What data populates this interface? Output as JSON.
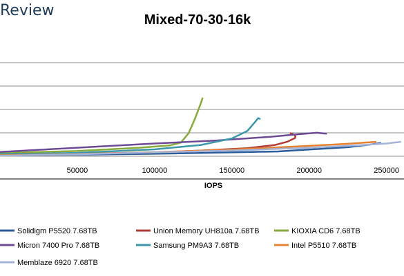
{
  "brand_text": "Review",
  "chart_data": {
    "type": "line",
    "title": "Mixed-70-30-16k",
    "xlabel": "IOPS",
    "ylabel": "",
    "xlim": [
      0,
      260000
    ],
    "xticks": [
      50000,
      100000,
      150000,
      200000,
      250000
    ],
    "x_tick_labels": [
      "50000",
      "100000",
      "150000",
      "200000",
      "250000"
    ],
    "y_gridlines": 5,
    "grid": true,
    "legend_position": "bottom",
    "series": [
      {
        "name": "Solidigm P5520 7.68TB",
        "color": "#2a5b9b",
        "points": [
          [
            0,
            0.05
          ],
          [
            50000,
            0.08
          ],
          [
            100000,
            0.12
          ],
          [
            150000,
            0.18
          ],
          [
            180000,
            0.22
          ],
          [
            200000,
            0.3
          ],
          [
            225000,
            0.4
          ],
          [
            240000,
            0.52
          ],
          [
            246000,
            0.58
          ]
        ]
      },
      {
        "name": "Union Memory UH810a 7.68TB",
        "color": "#b23b36",
        "points": [
          [
            0,
            0.08
          ],
          [
            50000,
            0.12
          ],
          [
            100000,
            0.18
          ],
          [
            130000,
            0.26
          ],
          [
            160000,
            0.36
          ],
          [
            178000,
            0.5
          ],
          [
            186000,
            0.64
          ],
          [
            191000,
            0.8
          ],
          [
            191000,
            0.92
          ],
          [
            188000,
            1.0
          ]
        ]
      },
      {
        "name": "KIOXIA CD6 7.68TB",
        "color": "#86ab3c",
        "points": [
          [
            0,
            0.15
          ],
          [
            50000,
            0.24
          ],
          [
            90000,
            0.38
          ],
          [
            110000,
            0.48
          ],
          [
            117000,
            0.6
          ],
          [
            122000,
            1.0
          ],
          [
            126000,
            1.6
          ],
          [
            130000,
            2.3
          ],
          [
            131000,
            2.5
          ]
        ]
      },
      {
        "name": "Micron 7400 Pro 7.68TB",
        "color": "#6d4a94",
        "points": [
          [
            0,
            0.2
          ],
          [
            50000,
            0.38
          ],
          [
            100000,
            0.56
          ],
          [
            140000,
            0.69
          ],
          [
            175000,
            0.85
          ],
          [
            195000,
            0.97
          ],
          [
            205000,
            1.02
          ],
          [
            211000,
            0.98
          ]
        ]
      },
      {
        "name": "Samsung PM9A3 7.68TB",
        "color": "#3b97a8",
        "points": [
          [
            0,
            0.1
          ],
          [
            50000,
            0.16
          ],
          [
            100000,
            0.31
          ],
          [
            130000,
            0.5
          ],
          [
            150000,
            0.78
          ],
          [
            160000,
            1.1
          ],
          [
            165000,
            1.48
          ],
          [
            167000,
            1.65
          ],
          [
            168000,
            1.62
          ]
        ]
      },
      {
        "name": "Intel P5510 7.68TB",
        "color": "#e5812f",
        "points": [
          [
            0,
            0.06
          ],
          [
            50000,
            0.11
          ],
          [
            100000,
            0.19
          ],
          [
            150000,
            0.3
          ],
          [
            200000,
            0.46
          ],
          [
            225000,
            0.55
          ],
          [
            243000,
            0.63
          ]
        ]
      },
      {
        "name": "Memblaze 6920 7.68TB",
        "color": "#a4b3d6",
        "points": [
          [
            0,
            0.04
          ],
          [
            50000,
            0.1
          ],
          [
            100000,
            0.18
          ],
          [
            150000,
            0.26
          ],
          [
            200000,
            0.38
          ],
          [
            230000,
            0.48
          ],
          [
            250000,
            0.56
          ],
          [
            259000,
            0.63
          ]
        ]
      }
    ]
  },
  "colors": {
    "brand": "#1f3b5a",
    "grid": "#8c8c8c",
    "axis": "#000000"
  }
}
